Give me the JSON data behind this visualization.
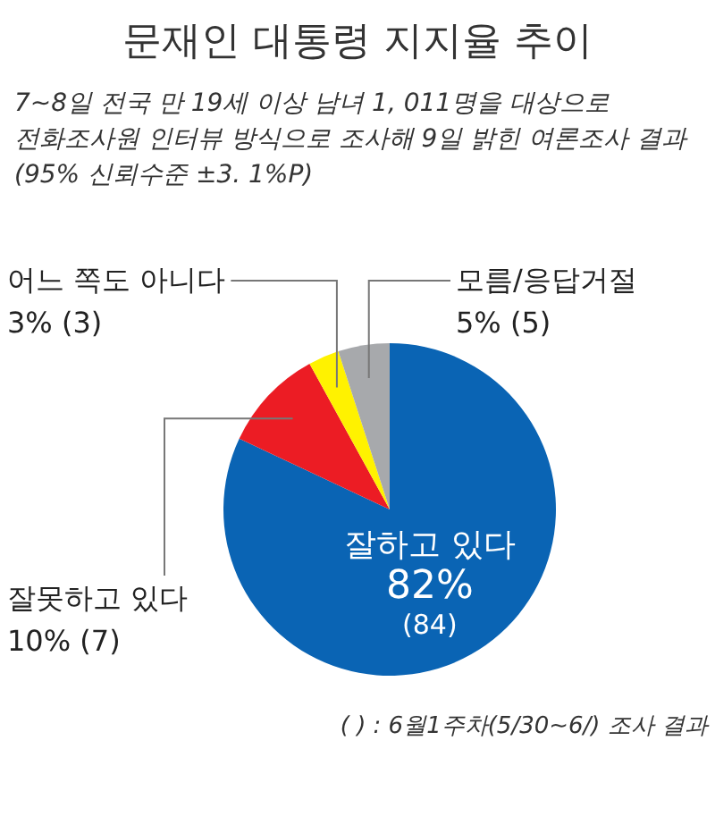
{
  "chart_data": {
    "type": "pie",
    "title": "문재인 대통령 지지율 추이",
    "subtitle": "7~8일 전국 만 19세 이상 남녀 1, 011명을 대상으로 전화조사원 인터뷰 방식으로 조사해 9일 밝힌 여론조사 결과 (95% 신뢰수준 ±3. 1%P)",
    "categories": [
      "잘하고 있다",
      "잘못하고 있다",
      "어느 쪽도 아니다",
      "모름/응답거절"
    ],
    "values": [
      82,
      10,
      3,
      5
    ],
    "value_labels": [
      "82% (84)",
      "10% (7)",
      "3% (3)",
      "5% (5)"
    ],
    "colors": [
      "#0a64b4",
      "#ec1c24",
      "#fff200",
      "#a7a9ac"
    ],
    "annotations": [
      "( ) : 6월1주차(5/30~6/) 조사 결과"
    ]
  }
}
